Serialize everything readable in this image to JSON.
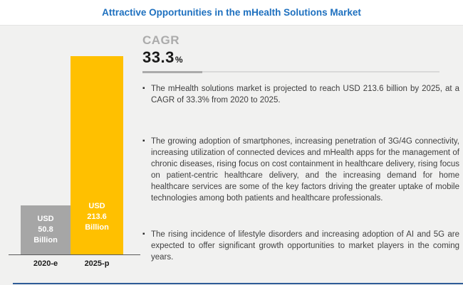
{
  "title": "Attractive Opportunities in the mHealth Solutions Market",
  "colors": {
    "title_blue": "#1E70BF",
    "panel_bg": "#F1F1F0",
    "bar_2020_gray": "#A6A6A6",
    "bar_2025_yellow": "#FFC000",
    "bar_label_white": "#FFFFFF",
    "cagr_label_gray": "#ABABAB",
    "body_text": "#3F3F3F",
    "bottom_line_blue": "#2E5B97"
  },
  "cagr": {
    "label": "CAGR",
    "value": "33.3",
    "unit": "%"
  },
  "chart_data": {
    "type": "bar",
    "categories": [
      "2020-e",
      "2025-p"
    ],
    "values": [
      50.8,
      213.6
    ],
    "value_unit": "USD Billion",
    "ylim": [
      0,
      230
    ],
    "grid": false,
    "legend": false,
    "bars": [
      {
        "category": "2020-e",
        "value": 50.8,
        "color": "#A6A6A6",
        "label_lines": [
          "USD",
          "50.8",
          "Billion"
        ]
      },
      {
        "category": "2025-p",
        "value": 213.6,
        "color": "#FFC000",
        "label_lines": [
          "USD",
          "213.6",
          "Billion"
        ]
      }
    ]
  },
  "bullets": {
    "marker": "▪",
    "items": [
      "The mHealth solutions market is projected to reach USD 213.6 billion by 2025, at a CAGR of 33.3% from 2020 to 2025.",
      "The growing adoption of smartphones, increasing penetration of 3G/4G connectivity, increasing utilization of connected devices and mHealth apps for the management of chronic diseases, rising focus on cost containment in healthcare delivery, rising focus on patient-centric healthcare delivery, and the increasing demand for home healthcare services are some of the key factors driving the greater uptake of mobile technologies among both patients and healthcare professionals.",
      "The rising incidence of lifestyle disorders and increasing adoption of AI and 5G are expected to offer significant growth opportunities to market players in the coming years."
    ]
  }
}
